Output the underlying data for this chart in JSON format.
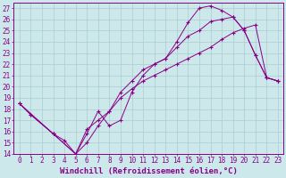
{
  "xlabel": "Windchill (Refroidissement éolien,°C)",
  "bg_color": "#cce8ea",
  "grid_color": "#aacccc",
  "line_color": "#880088",
  "xlim": [
    -0.5,
    23.5
  ],
  "ylim": [
    14,
    27.5
  ],
  "xticks": [
    0,
    1,
    2,
    3,
    4,
    5,
    6,
    7,
    8,
    9,
    10,
    11,
    12,
    13,
    14,
    15,
    16,
    17,
    18,
    19,
    20,
    21,
    22,
    23
  ],
  "yticks": [
    14,
    15,
    16,
    17,
    18,
    19,
    20,
    21,
    22,
    23,
    24,
    25,
    26,
    27
  ],
  "line1_x": [
    0,
    1,
    3,
    4,
    5,
    6,
    7,
    8,
    9,
    10,
    11,
    12,
    13,
    14,
    15,
    16,
    17,
    18,
    19,
    20,
    21,
    22,
    23
  ],
  "line1_y": [
    18.5,
    17.5,
    15.8,
    15.2,
    14.0,
    15.8,
    17.8,
    16.5,
    17.0,
    19.5,
    21.0,
    22.0,
    22.5,
    24.0,
    25.7,
    27.0,
    27.2,
    26.8,
    26.2,
    25.0,
    22.8,
    20.8,
    20.5
  ],
  "line2_x": [
    0,
    3,
    5,
    6,
    7,
    8,
    9,
    10,
    11,
    12,
    13,
    14,
    15,
    16,
    17,
    18,
    19,
    20,
    21,
    22,
    23
  ],
  "line2_y": [
    18.5,
    15.8,
    14.0,
    16.2,
    17.0,
    17.8,
    19.5,
    20.5,
    21.5,
    22.0,
    22.5,
    23.5,
    24.5,
    25.0,
    25.8,
    26.0,
    26.2,
    25.0,
    22.8,
    20.8,
    20.5
  ],
  "line3_x": [
    0,
    1,
    3,
    5,
    6,
    7,
    8,
    9,
    10,
    11,
    12,
    13,
    14,
    15,
    16,
    17,
    18,
    19,
    20,
    21,
    22,
    23
  ],
  "line3_y": [
    18.5,
    17.5,
    15.8,
    14.0,
    15.0,
    16.5,
    17.8,
    19.0,
    19.8,
    20.5,
    21.0,
    21.5,
    22.0,
    22.5,
    23.0,
    23.5,
    24.2,
    24.8,
    25.2,
    25.5,
    20.8,
    20.5
  ],
  "font_size": 6,
  "tick_font_size": 5.5,
  "xlabel_fontsize": 6.5
}
